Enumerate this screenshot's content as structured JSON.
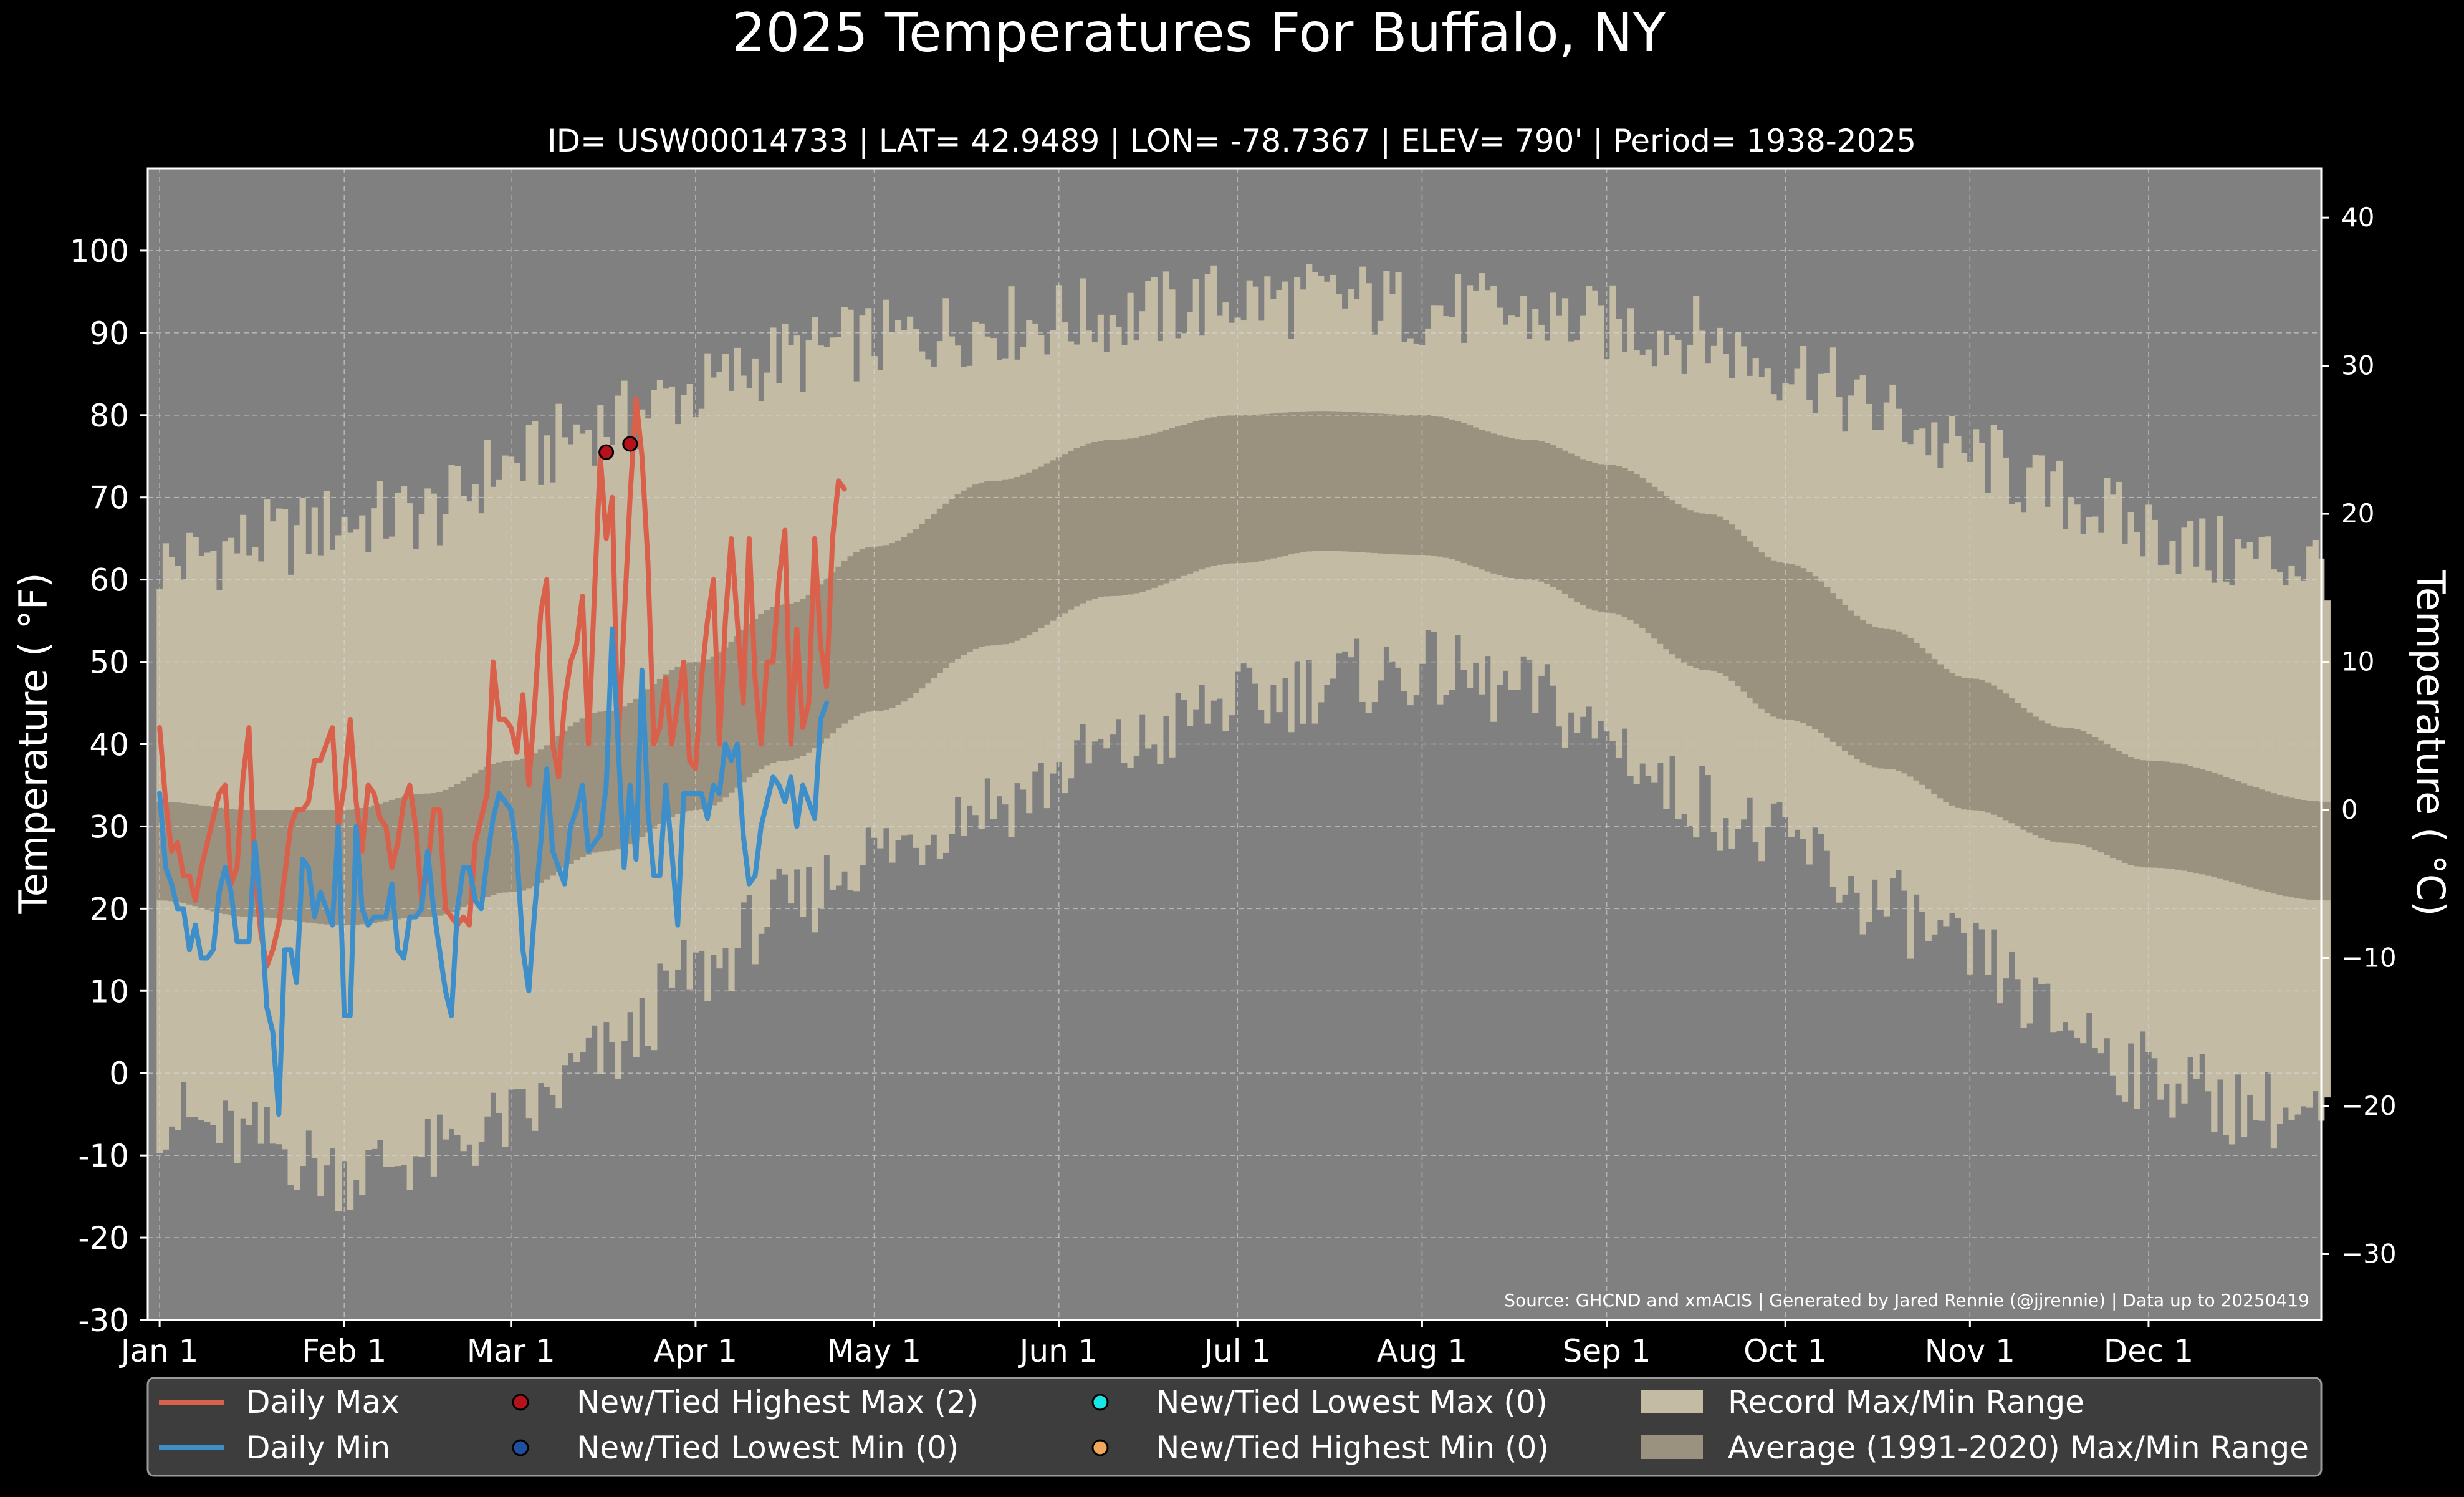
{
  "chart_data": {
    "type": "climate-band",
    "title": "2025 Temperatures For Buffalo, NY",
    "subtitle": "ID= USW00014733 | LAT= 42.9489 | LON= -78.7367 | ELEV= 790' | Period= 1938-2025",
    "ylabel_left": "Temperature ($^\\circ$F)",
    "ylabel_left_text": "Temperature ( °F)",
    "ylabel_right_text": "Temperature ( °C)",
    "source": "Source: GHCND and xmACIS | Generated by Jared Rennie (@jjrennie) | Data up to 20250419",
    "ylim_f": [
      -30,
      110
    ],
    "yticks_f": [
      "100",
      "90",
      "80",
      "70",
      "60",
      "50",
      "40",
      "30",
      "20",
      "10",
      "0",
      "-10",
      "-20",
      "-30"
    ],
    "yticks_c": [
      "40",
      "30",
      "20",
      "10",
      "0",
      "−10",
      "−20",
      "−30"
    ],
    "xlim_day": [
      -2,
      363
    ],
    "xticks": [
      {
        "label": "Jan 1",
        "day": 0
      },
      {
        "label": "Feb 1",
        "day": 31
      },
      {
        "label": "Mar 1",
        "day": 59
      },
      {
        "label": "Apr 1",
        "day": 90
      },
      {
        "label": "May 1",
        "day": 120
      },
      {
        "label": "Jun 1",
        "day": 151
      },
      {
        "label": "Jul 1",
        "day": 181
      },
      {
        "label": "Aug 1",
        "day": 212
      },
      {
        "label": "Sep 1",
        "day": 243
      },
      {
        "label": "Oct 1",
        "day": 273
      },
      {
        "label": "Nov 1",
        "day": 304
      },
      {
        "label": "Dec 1",
        "day": 334
      }
    ],
    "grid": true,
    "colors": {
      "background": "#000000",
      "plot_bg": "#808080",
      "record_band": "#c3bba4",
      "average_band": "#9b917f",
      "daily_max": "#d9604b",
      "daily_min": "#3e8fc9",
      "highest_max_marker": "#b5121b",
      "lowest_min_marker": "#1f4fa0",
      "lowest_max_marker": "#19e5e5",
      "highest_min_marker": "#f2a65a",
      "legend_bg": "#3d3d3d"
    },
    "record_max_anchors": [
      [
        0,
        62
      ],
      [
        20,
        65
      ],
      [
        31,
        67
      ],
      [
        45,
        68
      ],
      [
        59,
        74
      ],
      [
        75,
        79
      ],
      [
        90,
        83
      ],
      [
        105,
        87
      ],
      [
        120,
        89
      ],
      [
        140,
        91
      ],
      [
        160,
        92
      ],
      [
        181,
        94
      ],
      [
        200,
        94
      ],
      [
        212,
        93
      ],
      [
        230,
        92
      ],
      [
        243,
        91
      ],
      [
        255,
        90
      ],
      [
        273,
        86
      ],
      [
        290,
        80
      ],
      [
        304,
        75
      ],
      [
        320,
        70
      ],
      [
        334,
        66
      ],
      [
        345,
        63
      ],
      [
        364,
        62
      ]
    ],
    "record_min_anchors": [
      [
        0,
        -5
      ],
      [
        15,
        -8
      ],
      [
        31,
        -12
      ],
      [
        45,
        -10
      ],
      [
        59,
        -6
      ],
      [
        75,
        2
      ],
      [
        90,
        12
      ],
      [
        105,
        20
      ],
      [
        120,
        27
      ],
      [
        140,
        33
      ],
      [
        160,
        39
      ],
      [
        181,
        45
      ],
      [
        200,
        48
      ],
      [
        212,
        49
      ],
      [
        230,
        46
      ],
      [
        243,
        41
      ],
      [
        255,
        34
      ],
      [
        273,
        28
      ],
      [
        290,
        20
      ],
      [
        304,
        14
      ],
      [
        320,
        6
      ],
      [
        334,
        0
      ],
      [
        350,
        -4
      ],
      [
        364,
        -6
      ]
    ],
    "average_max_anchors": [
      [
        0,
        33
      ],
      [
        15,
        32
      ],
      [
        31,
        32
      ],
      [
        45,
        34
      ],
      [
        59,
        38
      ],
      [
        75,
        44
      ],
      [
        90,
        50
      ],
      [
        105,
        57
      ],
      [
        120,
        64
      ],
      [
        140,
        72
      ],
      [
        160,
        77
      ],
      [
        181,
        80
      ],
      [
        195,
        80.5
      ],
      [
        212,
        80
      ],
      [
        230,
        77
      ],
      [
        243,
        74
      ],
      [
        260,
        68
      ],
      [
        273,
        62
      ],
      [
        290,
        54
      ],
      [
        304,
        48
      ],
      [
        320,
        42
      ],
      [
        334,
        38
      ],
      [
        364,
        33
      ]
    ],
    "average_min_anchors": [
      [
        0,
        21
      ],
      [
        15,
        19
      ],
      [
        31,
        18
      ],
      [
        45,
        19
      ],
      [
        59,
        22
      ],
      [
        75,
        27
      ],
      [
        90,
        32
      ],
      [
        105,
        38
      ],
      [
        120,
        44
      ],
      [
        140,
        52
      ],
      [
        160,
        58
      ],
      [
        181,
        62
      ],
      [
        195,
        63.5
      ],
      [
        212,
        63
      ],
      [
        230,
        60
      ],
      [
        243,
        56
      ],
      [
        260,
        49
      ],
      [
        273,
        43
      ],
      [
        290,
        37
      ],
      [
        304,
        32
      ],
      [
        320,
        28
      ],
      [
        334,
        25
      ],
      [
        364,
        21
      ]
    ],
    "series": [
      {
        "name": "Daily Max",
        "start_day": 0,
        "values": [
          42,
          33,
          27,
          28,
          24,
          24,
          21,
          25,
          28,
          31,
          34,
          35,
          23,
          25,
          36,
          42,
          24,
          17,
          13,
          15,
          18,
          24,
          30,
          32,
          32,
          33,
          38,
          38,
          40,
          42,
          30,
          35,
          43,
          33,
          27,
          35,
          34,
          31,
          30,
          25,
          28,
          33,
          35,
          30,
          21,
          25,
          32,
          32,
          20,
          19,
          18,
          19,
          18,
          28,
          31,
          34,
          50,
          43,
          43,
          42,
          39,
          46,
          35,
          45,
          56,
          60,
          40,
          36,
          45,
          50,
          52,
          58,
          40,
          58,
          75,
          65,
          70,
          40,
          55,
          70,
          82,
          75,
          62,
          40,
          42,
          48,
          40,
          45,
          50,
          38,
          37,
          48,
          55,
          60,
          40,
          55,
          65,
          55,
          45,
          65,
          48,
          40,
          50,
          50,
          60,
          66,
          40,
          54,
          42,
          45,
          65,
          52,
          47,
          65,
          72,
          71
        ]
      },
      {
        "name": "Daily Min",
        "start_day": 0,
        "values": [
          34,
          25,
          23,
          20,
          20,
          15,
          18,
          14,
          14,
          15,
          22,
          25,
          22,
          16,
          16,
          16,
          28,
          20,
          8,
          5,
          -5,
          15,
          15,
          11,
          26,
          25,
          19,
          22,
          20,
          18,
          30,
          7,
          7,
          30,
          20,
          18,
          19,
          19,
          19,
          23,
          15,
          14,
          19,
          19,
          20,
          27,
          20,
          15,
          10,
          7,
          20,
          25,
          25,
          21,
          20,
          26,
          31,
          34,
          33,
          32,
          27,
          15,
          10,
          20,
          28,
          37,
          27,
          25,
          23,
          30,
          32,
          35,
          27,
          28,
          29,
          35,
          54,
          40,
          25,
          35,
          26,
          49,
          32,
          24,
          24,
          35,
          27,
          18,
          34,
          34,
          34,
          34,
          31,
          35,
          34,
          40,
          38,
          40,
          29,
          23,
          24,
          30,
          33,
          36,
          35,
          33,
          36,
          30,
          35,
          33,
          31,
          43,
          45
        ]
      }
    ],
    "record_points": [
      {
        "kind": "New/Tied Highest Max",
        "day": 75,
        "value": 75.5
      },
      {
        "kind": "New/Tied Highest Max",
        "day": 79,
        "value": 76.5
      }
    ],
    "legend": {
      "placement": "bottom",
      "daily_max": "Daily Max",
      "daily_min": "Daily Min",
      "new_highest_max": "New/Tied Highest Max (2)",
      "new_lowest_min": "New/Tied Lowest Min (0)",
      "new_lowest_max": "New/Tied Lowest Max (0)",
      "new_highest_min": "New/Tied Highest Min (0)",
      "record_range": "Record Max/Min Range",
      "average_range": "Average (1991-2020) Max/Min Range"
    }
  }
}
